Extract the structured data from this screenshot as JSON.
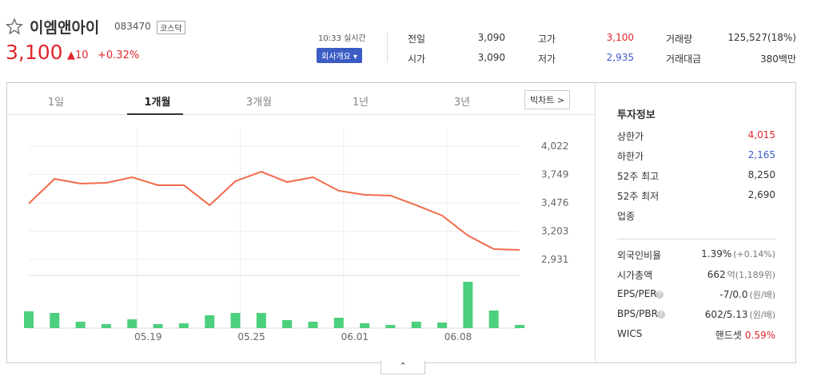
{
  "header": {
    "name": "이엠앤아이",
    "code": "083470",
    "market": "코스닥",
    "price": "3,100",
    "change": "▲10",
    "change_pct": "+0.32%",
    "time": "10:33 실시간",
    "button": "회사개요"
  },
  "quote": [
    [
      {
        "label": "전일",
        "value": "3,090"
      },
      {
        "label": "고가",
        "value": "3,100"
      },
      {
        "label": "거래량",
        "value": "125,527(18%)"
      }
    ],
    [
      {
        "label": "시가",
        "value": "3,090"
      },
      {
        "label": "저가",
        "value": "2,935"
      },
      {
        "label": "거래대금",
        "value": "380백만"
      }
    ]
  ],
  "tabs": [
    "1일",
    "1개월",
    "3개월",
    "1년",
    "3년"
  ],
  "big_chart": "빅차트",
  "chart": {
    "type": "line",
    "values": [
      3469,
      3707,
      3661,
      3669,
      3722,
      3646,
      3646,
      3453,
      3684,
      3776,
      3676,
      3722,
      3592,
      3553,
      3546,
      3453,
      3354,
      3161,
      3031,
      3023
    ],
    "color": "#f26a4a",
    "ylim": [
      2931,
      4022
    ],
    "yticks": [
      {
        "value": 4022,
        "label": "4,022"
      },
      {
        "value": 3749,
        "label": "3,749"
      },
      {
        "value": 3476,
        "label": "3,476"
      },
      {
        "value": 3203,
        "label": "3,203"
      },
      {
        "value": 2931,
        "label": "2,931"
      }
    ],
    "volume": [
      21,
      19,
      8,
      5,
      11,
      5,
      6,
      16,
      19,
      19,
      10,
      8,
      13,
      6,
      4,
      8,
      7,
      58,
      22,
      4
    ],
    "volume_color": "#4cd07d",
    "categories": [
      null,
      null,
      null,
      null,
      "05.19",
      null,
      null,
      null,
      "05.25",
      null,
      null,
      null,
      "06.01",
      null,
      null,
      null,
      "06.08",
      null,
      null,
      null
    ]
  },
  "info": {
    "title": "투자정보",
    "rows1": [
      {
        "label": "상한가",
        "value": "4,015"
      },
      {
        "label": "하한가",
        "value": "2,165"
      },
      {
        "label": "52주 최고",
        "value": "8,250"
      },
      {
        "label": "52주 최저",
        "value": "2,690"
      },
      {
        "label": "업종",
        "value": null
      }
    ],
    "rows2": [
      {
        "label": "외국인비율",
        "value": "1.39%",
        "extra": "(+0.14%)"
      },
      {
        "label": "시가총액",
        "value": "662",
        "extra": "억(1,189위)"
      },
      {
        "label": "EPS/PER",
        "value": "-7/0.0",
        "extra": "(원/배)"
      },
      {
        "label": "BPS/PBR",
        "value": "602/5.13",
        "extra": "(원/배)"
      },
      {
        "label": "WICS",
        "value": "핸드셋",
        "extra": "0.59%"
      }
    ]
  }
}
